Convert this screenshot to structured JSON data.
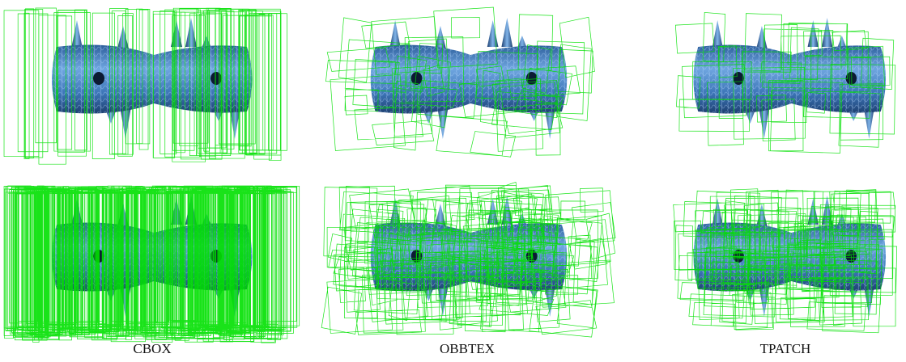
{
  "captions": [
    "CBOX",
    "OBBTEX",
    "TPATCH"
  ]
}
